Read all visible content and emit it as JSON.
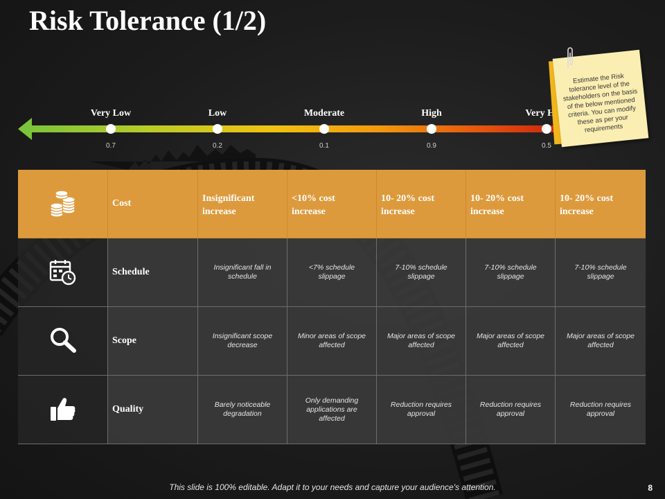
{
  "title": "Risk Tolerance (1/2)",
  "scale": {
    "levels": [
      {
        "label": "Very Low",
        "value": "0.7"
      },
      {
        "label": "Low",
        "value": "0.2"
      },
      {
        "label": "Moderate",
        "value": "0.1"
      },
      {
        "label": "High",
        "value": "0.9"
      },
      {
        "label": "Very High",
        "value": "0.5"
      }
    ]
  },
  "note": "Estimate the Risk tolerance level of the stakeholders on the basis of the below mentioned criteria. You can modify these as per your requirements",
  "table": {
    "rows": [
      {
        "icon": "coins-icon",
        "criterion": "Cost",
        "cells": [
          "Insignificant increase",
          "<10% cost increase",
          "10- 20% cost increase",
          "10- 20% cost increase",
          "10- 20% cost increase"
        ]
      },
      {
        "icon": "calendar-clock-icon",
        "criterion": "Schedule",
        "cells": [
          "Insignificant fall in schedule",
          "<7% schedule slippage",
          "7-10% schedule slippage",
          "7-10% schedule slippage",
          "7-10% schedule slippage"
        ]
      },
      {
        "icon": "magnifier-icon",
        "criterion": "Scope",
        "cells": [
          "Insignificant scope decrease",
          "Minor areas of scope affected",
          "Major areas of scope affected",
          "Major areas of scope affected",
          "Major areas of scope affected"
        ]
      },
      {
        "icon": "thumbs-up-icon",
        "criterion": "Quality",
        "cells": [
          "Barely noticeable degradation",
          "Only demanding applications are affected",
          "Reduction requires approval",
          "Reduction requires approval",
          "Reduction requires approval"
        ]
      }
    ]
  },
  "footer": "This slide is 100% editable. Adapt it to your needs and capture your audience's attention.",
  "page_number": "8",
  "colors": {
    "header_orange": "#dd9a3c",
    "scale_green": "#7cc43a",
    "scale_red": "#c8220e",
    "note_yellow": "#fbeeb2"
  }
}
